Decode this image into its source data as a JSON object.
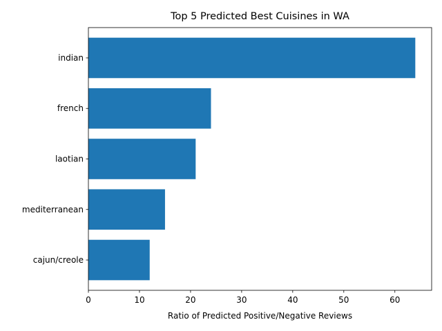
{
  "chart_data": {
    "type": "bar",
    "orientation": "horizontal",
    "title": "Top 5 Predicted Best Cuisines in WA",
    "xlabel": "Ratio of Predicted Positive/Negative Reviews",
    "ylabel": "",
    "categories": [
      "indian",
      "french",
      "laotian",
      "mediterranean",
      "cajun/creole"
    ],
    "values": [
      64,
      24,
      21,
      15,
      12
    ],
    "xlim": [
      0,
      67.2
    ],
    "xticks": [
      0,
      10,
      20,
      30,
      40,
      50,
      60
    ],
    "grid": false,
    "legend": "none",
    "bar_color": "#1f77b4"
  }
}
